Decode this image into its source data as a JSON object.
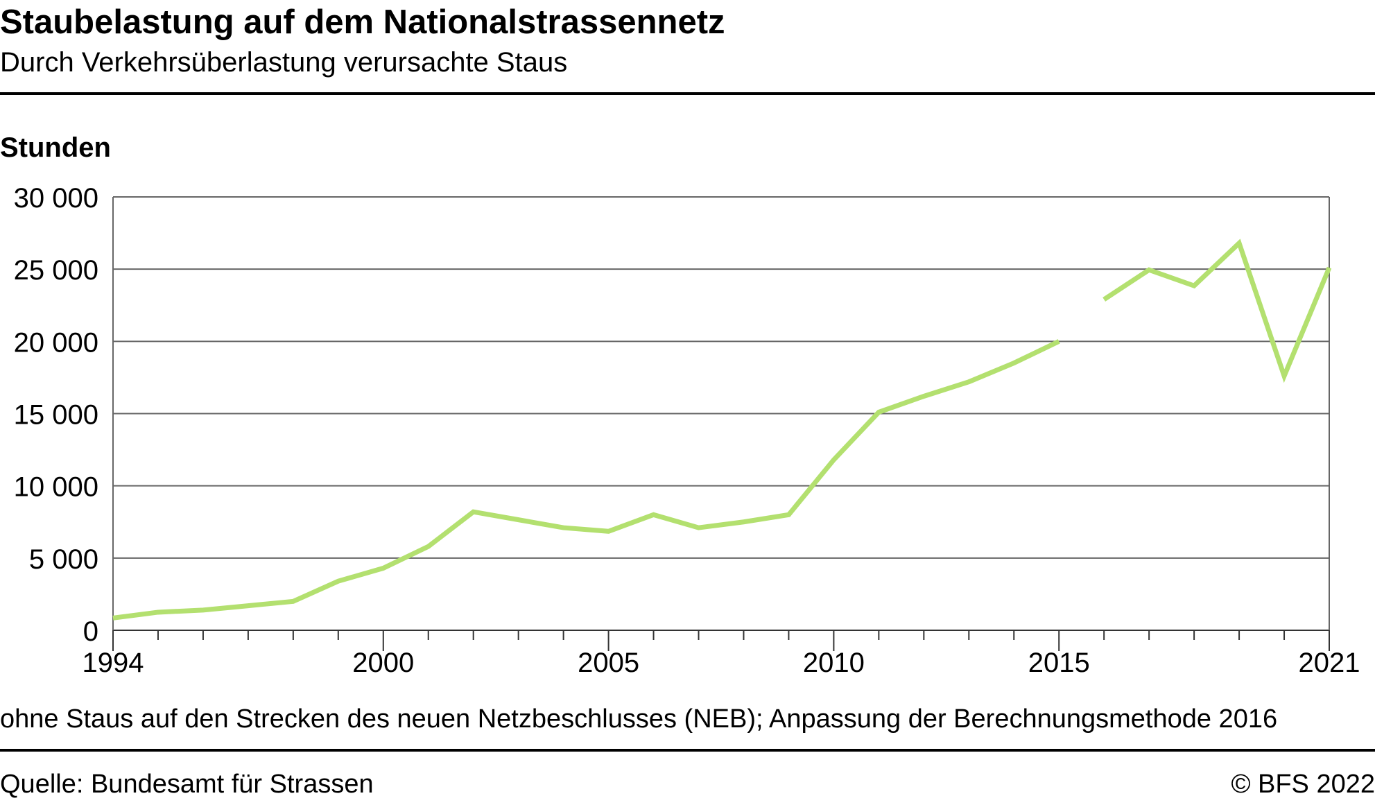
{
  "header": {
    "title": "Staubelastung auf dem Nationalstrassennetz",
    "subtitle": "Durch Verkehrsüberlastung verursachte Staus"
  },
  "footer": {
    "note": "ohne Staus auf den Strecken des neuen Netzbeschlusses (NEB); Anpassung der Berechnungsmethode 2016",
    "source": "Quelle: Bundesamt für Strassen",
    "copyright": "© BFS 2022"
  },
  "chart_data": {
    "type": "line",
    "title": "Staubelastung auf dem Nationalstrassennetz",
    "subtitle": "Durch Verkehrsüberlastung verursachte Staus",
    "ylabel": "Stunden",
    "xlabel": "",
    "xlim": [
      1994,
      2021
    ],
    "ylim": [
      0,
      30000
    ],
    "x_tick_labels": [
      "1994",
      "2000",
      "2005",
      "2010",
      "2015",
      "2021"
    ],
    "y_tick_labels": [
      "0",
      "5 000",
      "10 000",
      "15 000",
      "20 000",
      "25 000",
      "30 000"
    ],
    "y_ticks": [
      0,
      5000,
      10000,
      15000,
      20000,
      25000,
      30000
    ],
    "x_ticks": [
      1994,
      2000,
      2005,
      2010,
      2015,
      2021
    ],
    "grid": true,
    "line_color": "#b3e06f",
    "series": [
      {
        "segments": [
          {
            "x": [
              1994,
              1995,
              1996,
              1997,
              1998,
              1999,
              2000,
              2001,
              2002,
              2003,
              2004,
              2005,
              2006,
              2007,
              2008,
              2009,
              2010,
              2011,
              2012,
              2013,
              2014,
              2015
            ],
            "y": [
              850,
              1250,
              1400,
              1700,
              2000,
              3400,
              4300,
              5800,
              8200,
              7650,
              7100,
              6850,
              8000,
              7100,
              7500,
              8000,
              11800,
              15100,
              16200,
              17200,
              18500,
              20000
            ]
          },
          {
            "x": [
              2016,
              2017,
              2018,
              2019,
              2020,
              2021
            ],
            "y": [
              22900,
              24950,
              23850,
              26800,
              17600,
              25100
            ]
          }
        ]
      }
    ]
  }
}
